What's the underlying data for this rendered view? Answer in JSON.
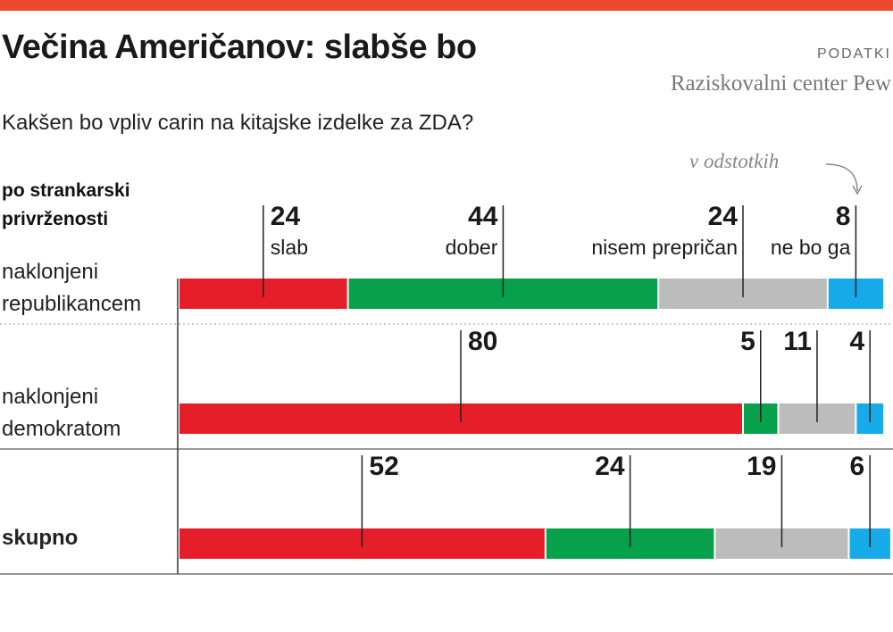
{
  "chart_data": {
    "type": "stacked-bar",
    "title": "Večina Američanov: slabše bo",
    "source_label": "PODATKI",
    "source": "Raziskovalni center Pew",
    "subtitle": "Kakšen bo vpliv carin na kitajske izdelke za ZDA?",
    "unit_note": "v odstotkih",
    "group_label": "po strankarski privrženosti",
    "categories": [
      "naklonjeni republikancem",
      "naklonjeni demokratom",
      "skupno"
    ],
    "series": [
      {
        "name": "slab",
        "color": "#e61e2a",
        "values": [
          24,
          80,
          52
        ]
      },
      {
        "name": "dober",
        "color": "#07a04b",
        "values": [
          44,
          5,
          24
        ]
      },
      {
        "name": "nisem prepričan",
        "color": "#bcbcbc",
        "values": [
          24,
          11,
          19
        ]
      },
      {
        "name": "ne bo ga",
        "color": "#17aae8",
        "values": [
          8,
          4,
          6
        ]
      }
    ],
    "xlim": [
      0,
      100
    ]
  }
}
